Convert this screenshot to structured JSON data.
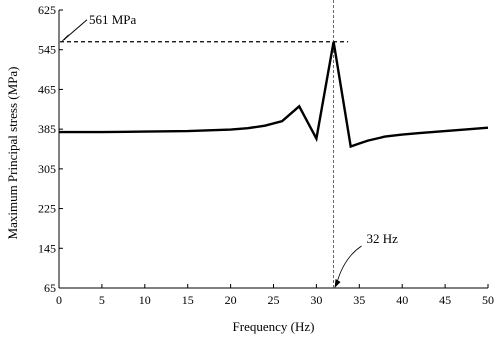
{
  "chart_data": {
    "type": "line",
    "title": "",
    "xlabel": "Frequency (Hz)",
    "ylabel": "Maximum Principal stress (MPa)",
    "xlim": [
      0,
      50
    ],
    "ylim": [
      65,
      625
    ],
    "xticks": [
      0,
      5,
      10,
      15,
      20,
      25,
      30,
      35,
      40,
      45,
      50
    ],
    "yticks": [
      65,
      145,
      225,
      305,
      385,
      465,
      545,
      625
    ],
    "grid": false,
    "series": [
      {
        "x": [
          0,
          5,
          10,
          15,
          20,
          22,
          24,
          26,
          28,
          30,
          32,
          34,
          35,
          36,
          38,
          40,
          42,
          45,
          48,
          50
        ],
        "y": [
          379,
          379,
          380,
          381,
          384,
          387,
          392,
          401,
          431,
          366,
          561,
          350,
          356,
          362,
          370,
          374,
          377,
          381,
          385,
          388
        ]
      }
    ],
    "annotations": {
      "peak_label": "561 MPa",
      "peak_value": 561,
      "freq_label": "32 Hz",
      "freq_value": 32
    }
  }
}
